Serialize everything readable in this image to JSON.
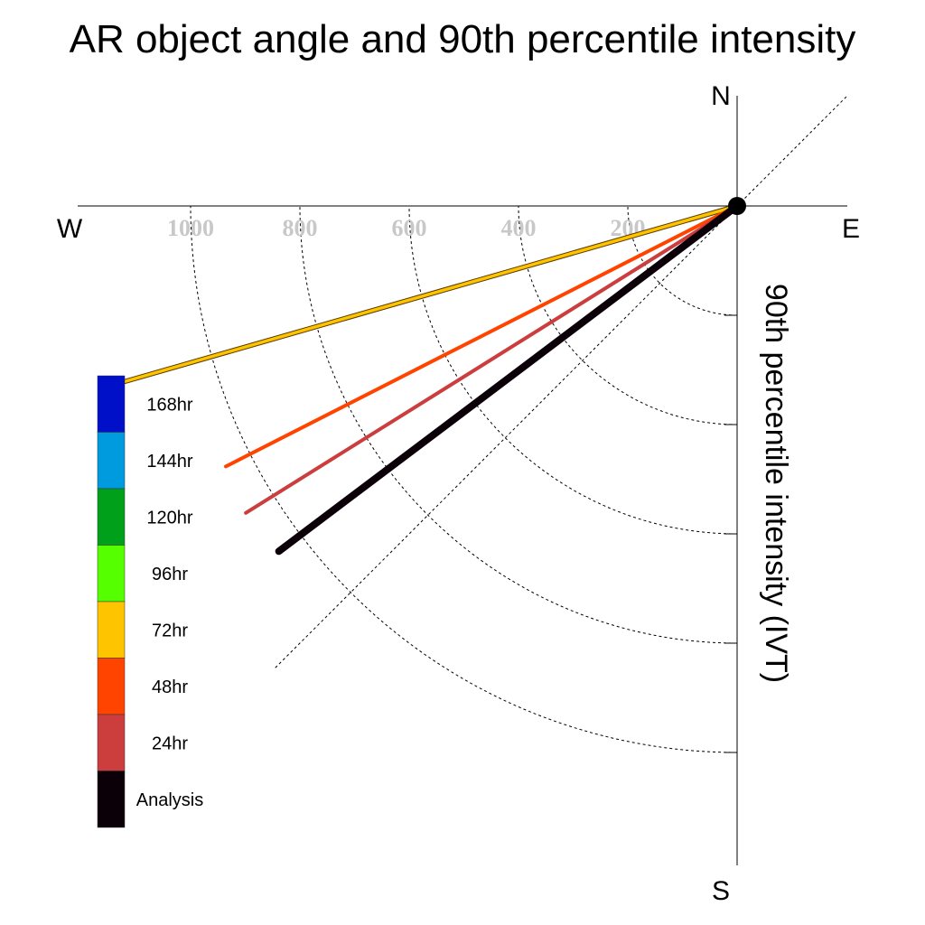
{
  "chart_data": {
    "type": "polar-vector",
    "title": "AR object angle and 90th percentile intensity",
    "radial_axis_label": "90th percentile intensity (IVT)",
    "compass": {
      "north": "N",
      "south": "S",
      "east": "E",
      "west": "W"
    },
    "radial_ticks": [
      200,
      400,
      600,
      800,
      1000
    ],
    "radial_tick_labels": [
      "200",
      "400",
      "600",
      "800",
      "1000"
    ],
    "radial_range": [
      0,
      1200
    ],
    "grid": true,
    "legend_position": "left",
    "series": [
      {
        "name": "72hr",
        "color": "#ffc400",
        "angle_deg": 254,
        "intensity": 1190
      },
      {
        "name": "48hr",
        "color": "#ff4400",
        "angle_deg": 243,
        "intensity": 1050
      },
      {
        "name": "24hr",
        "color": "#cc3d3d",
        "angle_deg": 238,
        "intensity": 1060
      },
      {
        "name": "Analysis",
        "color": "#0b0008",
        "angle_deg": 233,
        "intensity": 1050
      }
    ],
    "legend": [
      {
        "label": "168hr",
        "color": "#0010c8"
      },
      {
        "label": "144hr",
        "color": "#009bdf"
      },
      {
        "label": "120hr",
        "color": "#00a01a"
      },
      {
        "label": "96hr",
        "color": "#55ff00"
      },
      {
        "label": "72hr",
        "color": "#ffc400"
      },
      {
        "label": "48hr",
        "color": "#ff4400"
      },
      {
        "label": "24hr",
        "color": "#cc3d3d"
      },
      {
        "label": "Analysis",
        "color": "#0b0008"
      }
    ]
  }
}
